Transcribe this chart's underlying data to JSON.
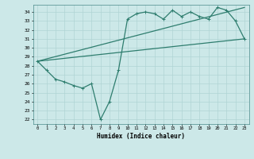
{
  "xlabel": "Humidex (Indice chaleur)",
  "xlim": [
    -0.5,
    23.5
  ],
  "ylim": [
    21.5,
    34.8
  ],
  "yticks": [
    22,
    23,
    24,
    25,
    26,
    27,
    28,
    29,
    30,
    31,
    32,
    33,
    34
  ],
  "xticks": [
    0,
    1,
    2,
    3,
    4,
    5,
    6,
    7,
    8,
    9,
    10,
    11,
    12,
    13,
    14,
    15,
    16,
    17,
    18,
    19,
    20,
    21,
    22,
    23
  ],
  "line_color": "#2e7d6e",
  "bg_color": "#cce8e8",
  "grid_color": "#b0d4d4",
  "line1_x": [
    0,
    1,
    2,
    3,
    4,
    5,
    6,
    7,
    8,
    9,
    10,
    11,
    12,
    13,
    14,
    15,
    16,
    17,
    18,
    19,
    20,
    21,
    22,
    23
  ],
  "line1_y": [
    28.5,
    27.5,
    26.5,
    26.2,
    25.8,
    25.5,
    26.0,
    22.0,
    24.0,
    27.5,
    33.2,
    33.8,
    34.0,
    33.8,
    33.2,
    34.2,
    33.5,
    34.0,
    33.5,
    33.2,
    34.5,
    34.2,
    33.0,
    31.0
  ],
  "line2_x": [
    0,
    23
  ],
  "line2_y": [
    28.5,
    34.5
  ],
  "line3_x": [
    0,
    23
  ],
  "line3_y": [
    28.5,
    31.0
  ]
}
